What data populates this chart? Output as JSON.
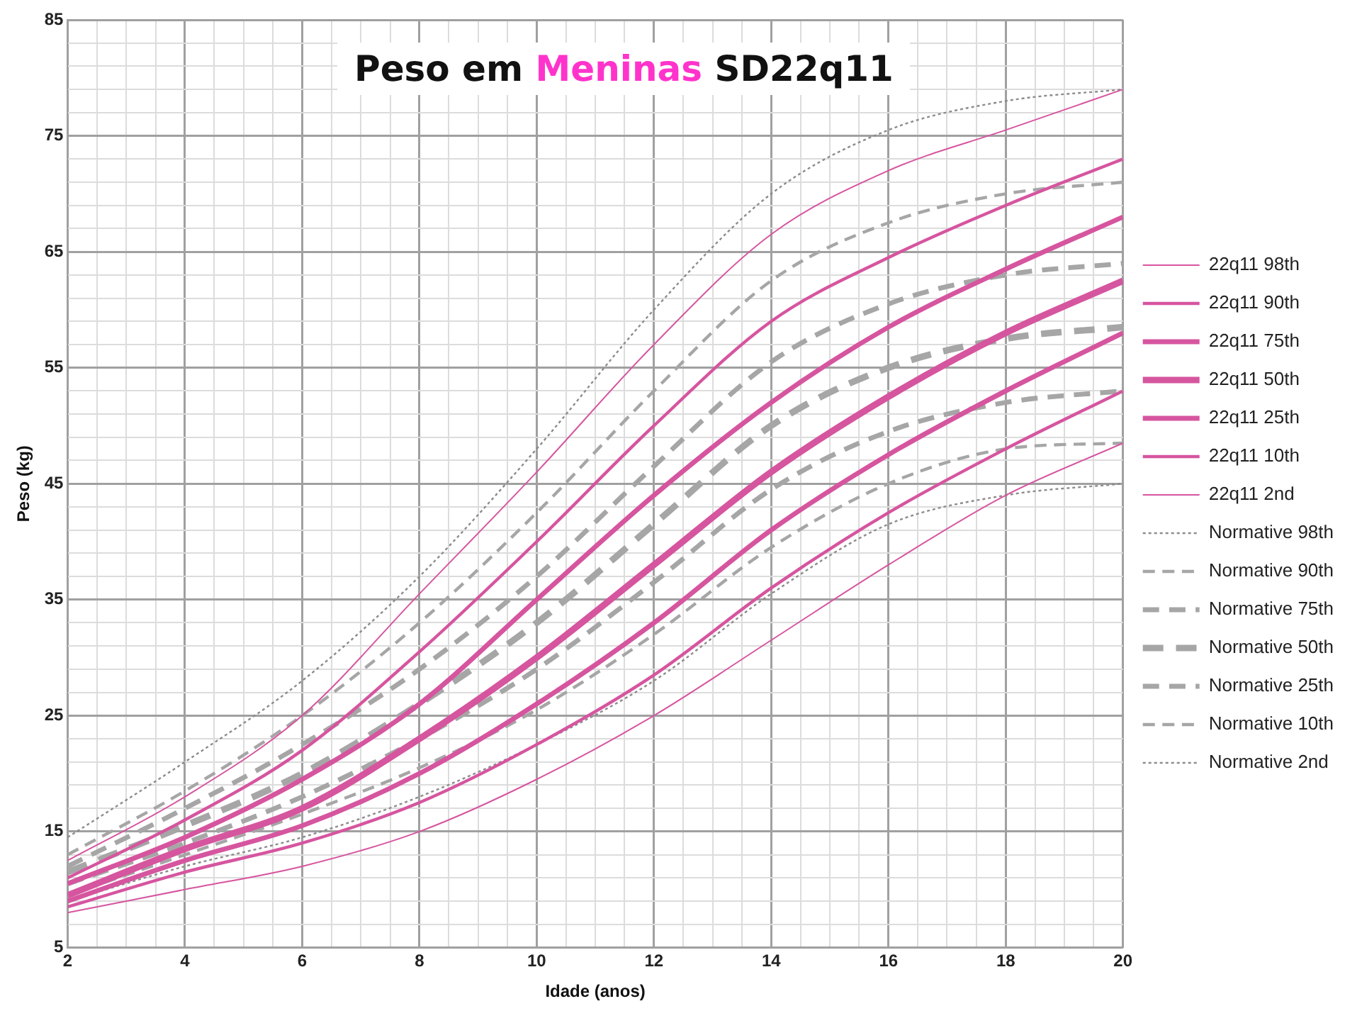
{
  "chart_data": {
    "type": "line",
    "title": "Peso em Meninas SD22q11",
    "xlabel": "Idade (anos)",
    "ylabel": "Peso (kg)",
    "x": [
      2,
      4,
      6,
      8,
      10,
      12,
      14,
      16,
      18,
      20
    ],
    "xlim": [
      2,
      20
    ],
    "ylim": [
      5,
      85
    ],
    "xticks": [
      2,
      {
        "value": 2.5,
        "label": null
      },
      {
        "value": 3,
        "label": null
      },
      {
        "value": 3.5,
        "label": null
      },
      4,
      {
        "value": 4.5,
        "label": null
      },
      {
        "value": 5,
        "label": null
      },
      {
        "value": 5.5,
        "label": null
      },
      6,
      {
        "value": 6.5,
        "label": null
      },
      {
        "value": 7,
        "label": null
      },
      {
        "value": 7.5,
        "label": null
      },
      8,
      {
        "value": 8.5,
        "label": null
      },
      {
        "value": 9,
        "label": null
      },
      {
        "value": 9.5,
        "label": null
      },
      10,
      {
        "value": 10.5,
        "label": null
      },
      {
        "value": 11,
        "label": null
      },
      {
        "value": 11.5,
        "label": null
      },
      12,
      {
        "value": 12.5,
        "label": null
      },
      {
        "value": 13,
        "label": null
      },
      {
        "value": 13.5,
        "label": null
      },
      14,
      {
        "value": 14.5,
        "label": null
      },
      {
        "value": 15,
        "label": null
      },
      {
        "value": 15.5,
        "label": null
      },
      16,
      {
        "value": 16.5,
        "label": null
      },
      {
        "value": 17,
        "label": null
      },
      {
        "value": 17.5,
        "label": null
      },
      18,
      {
        "value": 18.5,
        "label": null
      },
      {
        "value": 19,
        "label": null
      },
      {
        "value": 19.5,
        "label": null
      },
      20
    ],
    "yticks": [
      5,
      {
        "value": 7,
        "label": null
      },
      {
        "value": 9,
        "label": null
      },
      {
        "value": 11,
        "label": null
      },
      {
        "value": 13,
        "label": null
      },
      15,
      {
        "value": 17,
        "label": null
      },
      {
        "value": 19,
        "label": null
      },
      {
        "value": 21,
        "label": null
      },
      {
        "value": 23,
        "label": null
      },
      25,
      {
        "value": 27,
        "label": null
      },
      {
        "value": 29,
        "label": null
      },
      {
        "value": 31,
        "label": null
      },
      {
        "value": 33,
        "label": null
      },
      35,
      {
        "value": 37,
        "label": null
      },
      {
        "value": 39,
        "label": null
      },
      {
        "value": 41,
        "label": null
      },
      {
        "value": 43,
        "label": null
      },
      45,
      {
        "value": 47,
        "label": null
      },
      {
        "value": 49,
        "label": null
      },
      {
        "value": 51,
        "label": null
      },
      {
        "value": 53,
        "label": null
      },
      55,
      {
        "value": 57,
        "label": null
      },
      {
        "value": 59,
        "label": null
      },
      {
        "value": 61,
        "label": null
      },
      {
        "value": 63,
        "label": null
      },
      65,
      {
        "value": 67,
        "label": null
      },
      {
        "value": 69,
        "label": null
      },
      {
        "value": 71,
        "label": null
      },
      {
        "value": 73,
        "label": null
      },
      75,
      {
        "value": 77,
        "label": null
      },
      {
        "value": 79,
        "label": null
      },
      {
        "value": 81,
        "label": null
      },
      {
        "value": 83,
        "label": null
      },
      85
    ],
    "grid": true,
    "legend": "right",
    "marker": "none",
    "series": [
      {
        "name": "22q11 98th",
        "color": "#d6559f",
        "line_style": "solid",
        "values": [
          12.5,
          18,
          25,
          35.5,
          46,
          57,
          66.5,
          72,
          75.5,
          79
        ]
      },
      {
        "name": "22q11 90th",
        "color": "#d6559f",
        "line_style": "solid",
        "values": [
          11,
          16,
          22,
          30.5,
          40,
          50,
          59,
          64.5,
          69,
          73
        ]
      },
      {
        "name": "22q11 75th",
        "color": "#d6559f",
        "line_style": "solid",
        "values": [
          10.5,
          14.5,
          19.5,
          26,
          35,
          44,
          52,
          58.5,
          63.5,
          68
        ]
      },
      {
        "name": "22q11 50th",
        "color": "#d6559f",
        "line_style": "solid",
        "values": [
          9.5,
          13.5,
          17,
          23,
          30,
          38,
          46,
          52.5,
          58,
          62.5
        ]
      },
      {
        "name": "22q11 25th",
        "color": "#d6559f",
        "line_style": "solid",
        "values": [
          9,
          12.5,
          15.5,
          20,
          26,
          33,
          41,
          47.5,
          53,
          58
        ]
      },
      {
        "name": "22q11 10th",
        "color": "#d6559f",
        "line_style": "solid",
        "values": [
          8.5,
          11.5,
          14,
          17.5,
          22.5,
          28.5,
          36,
          42.5,
          48,
          53
        ]
      },
      {
        "name": "22q11 2nd",
        "color": "#d6559f",
        "line_style": "solid",
        "values": [
          8,
          10,
          12,
          15,
          19.5,
          25,
          31.5,
          38,
          44,
          48.5
        ]
      },
      {
        "name": "Normative 98th",
        "color": "#8c8c8c",
        "line_style": "dotted",
        "values": [
          14.5,
          21,
          28,
          37,
          48,
          60,
          70,
          75.5,
          78,
          79
        ]
      },
      {
        "name": "Normative 90th",
        "color": "#a6a6a6",
        "line_style": "dashed",
        "values": [
          13,
          18.5,
          25,
          33,
          42.5,
          53,
          62.5,
          67.5,
          70,
          71
        ]
      },
      {
        "name": "Normative 75th",
        "color": "#a6a6a6",
        "line_style": "dashed",
        "values": [
          12,
          17,
          22.5,
          29,
          37,
          46.5,
          55.5,
          60.5,
          63,
          64
        ]
      },
      {
        "name": "Normative 50th",
        "color": "#a6a6a6",
        "line_style": "dashed",
        "values": [
          11.5,
          15.5,
          20,
          26,
          33,
          41.5,
          50,
          55,
          57.5,
          58.5
        ]
      },
      {
        "name": "Normative 25th",
        "color": "#a6a6a6",
        "line_style": "dashed",
        "values": [
          10.5,
          14,
          18,
          23,
          29,
          36.5,
          44.5,
          49.5,
          52,
          53
        ]
      },
      {
        "name": "Normative 10th",
        "color": "#a6a6a6",
        "line_style": "dashed",
        "values": [
          9.5,
          13,
          16.5,
          20.5,
          25.5,
          32,
          39.5,
          45,
          48,
          48.5
        ]
      },
      {
        "name": "Normative 2nd",
        "color": "#8c8c8c",
        "line_style": "dotted",
        "values": [
          9,
          12,
          14.5,
          18,
          22.5,
          28,
          35.5,
          41.5,
          44,
          45
        ]
      }
    ]
  }
}
